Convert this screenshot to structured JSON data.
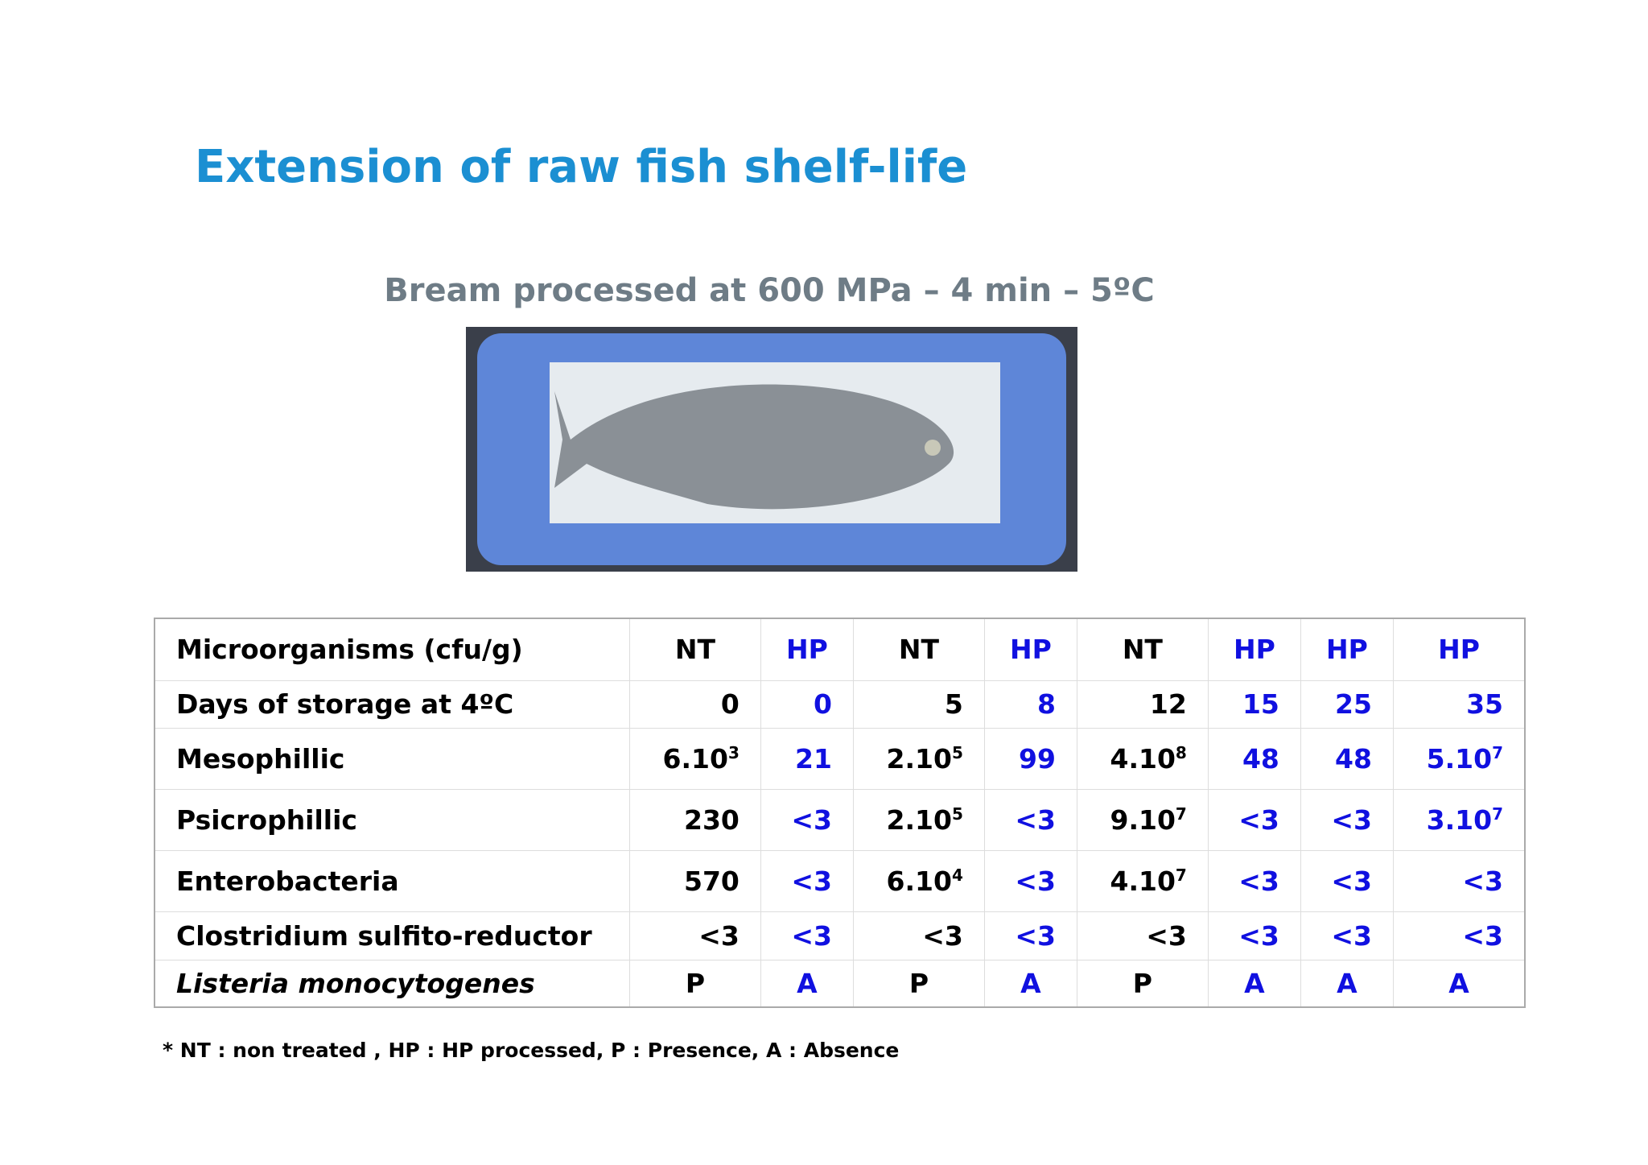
{
  "header": {
    "title": "Extension of raw fish shelf-life",
    "subtitle": "Bream processed at 600 MPa – 4 min – 5ºC"
  },
  "table": {
    "column_colors": [
      "#000000",
      "#000000",
      "#1010e0",
      "#000000",
      "#1010e0",
      "#000000",
      "#1010e0",
      "#1010e0",
      "#1010e0"
    ],
    "rows": [
      [
        "Microorganisms (cfu/g)",
        "NT",
        "HP",
        "NT",
        "HP",
        "NT",
        "HP",
        "HP",
        "HP"
      ],
      [
        "Days of storage at 4ºC",
        "0",
        "0",
        "5",
        "8",
        "12",
        "15",
        "25",
        "35"
      ],
      [
        "Mesophillic",
        {
          "text": "6.10",
          "sup": "3"
        },
        "21",
        {
          "text": "2.10",
          "sup": "5"
        },
        "99",
        {
          "text": "4.10",
          "sup": "8"
        },
        "48",
        "48",
        {
          "text": "5.10",
          "sup": "7"
        }
      ],
      [
        "Psicrophillic",
        "230",
        "<3",
        {
          "text": "2.10",
          "sup": "5"
        },
        "<3",
        {
          "text": "9.10",
          "sup": "7"
        },
        "<3",
        "<3",
        {
          "text": "3.10",
          "sup": "7"
        }
      ],
      [
        "Enterobacteria",
        "570",
        "<3",
        {
          "text": "6.10",
          "sup": "4"
        },
        "<3",
        {
          "text": "4.10",
          "sup": "7"
        },
        "<3",
        "<3",
        "<3"
      ],
      [
        "Clostridium sulfito-reductor",
        "<3",
        "<3",
        "<3",
        "<3",
        "<3",
        "<3",
        "<3",
        "<3"
      ],
      [
        "Listeria monocytogenes",
        "P",
        "A",
        "P",
        "A",
        "P",
        "A",
        "A",
        "A"
      ]
    ]
  },
  "footnote": "* NT : non treated , HP : HP processed, P : Presence, A : Absence"
}
